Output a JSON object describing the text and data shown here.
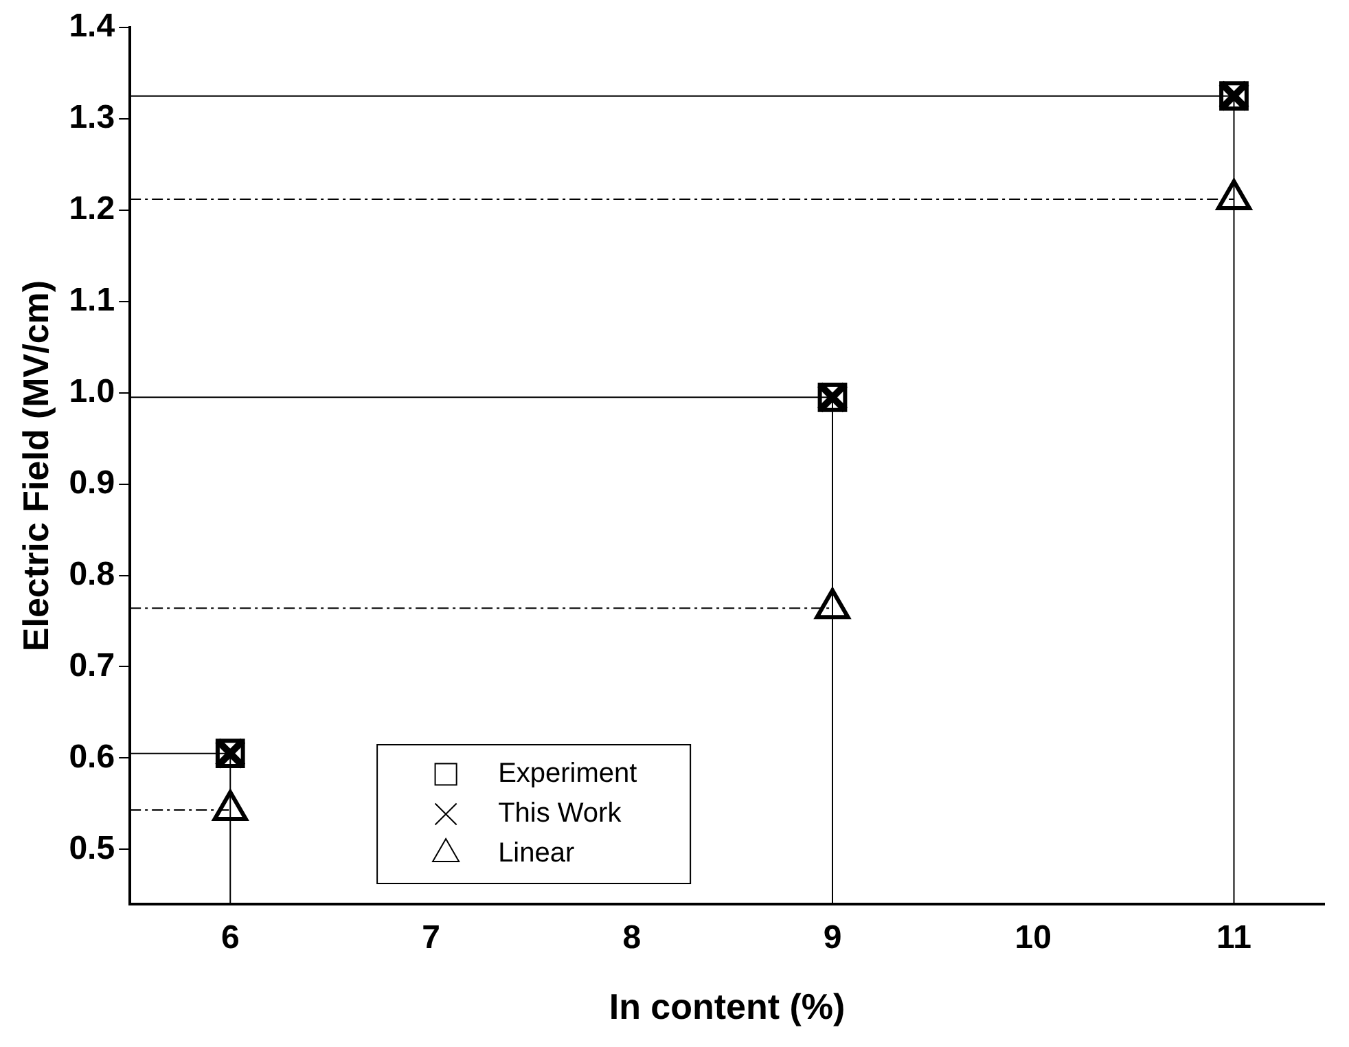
{
  "chart_data": {
    "type": "scatter",
    "xlabel": "In content (%)",
    "ylabel": "Electric Field (MV/cm)",
    "x": [
      6,
      9,
      11
    ],
    "series": [
      {
        "name": "Experiment",
        "color": "#000000",
        "marker": "square",
        "values": [
          0.605,
          0.995,
          1.325
        ]
      },
      {
        "name": "This Work",
        "color": "#000000",
        "marker": "cross",
        "values": [
          0.605,
          0.995,
          1.325
        ]
      },
      {
        "name": "Linear",
        "color": "#000000",
        "marker": "triangle",
        "values": [
          0.543,
          0.764,
          1.212
        ]
      },
      {
        "type": "line",
        "color": "#000000",
        "marker": "none",
        "line_style": "solid",
        "x": [
          5.5,
          6
        ],
        "values": [
          0.605,
          0.605
        ]
      },
      {
        "type": "line",
        "color": "#000000",
        "marker": "none",
        "line_style": "solid",
        "x": [
          5.5,
          9
        ],
        "values": [
          0.995,
          0.995
        ]
      },
      {
        "type": "line",
        "color": "#000000",
        "marker": "none",
        "line_style": "solid",
        "x": [
          5.5,
          11
        ],
        "values": [
          1.325,
          1.325
        ]
      },
      {
        "type": "line",
        "color": "#000000",
        "marker": "none",
        "line_style": "dashed",
        "x": [
          5.5,
          6
        ],
        "values": [
          0.543,
          0.543
        ]
      },
      {
        "type": "line",
        "color": "#000000",
        "marker": "none",
        "line_style": "dashed",
        "x": [
          5.5,
          9
        ],
        "values": [
          0.764,
          0.764
        ]
      },
      {
        "type": "line",
        "color": "#000000",
        "marker": "none",
        "line_style": "dashed",
        "x": [
          5.5,
          11
        ],
        "values": [
          1.212,
          1.212
        ]
      },
      {
        "type": "line",
        "color": "#000000",
        "marker": "none",
        "line_style": "solid",
        "x": [
          6,
          6
        ],
        "values": [
          0.44,
          0.605
        ]
      },
      {
        "type": "line",
        "color": "#000000",
        "marker": "none",
        "line_style": "solid",
        "x": [
          9,
          9
        ],
        "values": [
          0.44,
          0.995
        ]
      },
      {
        "type": "line",
        "color": "#000000",
        "marker": "none",
        "line_style": "solid",
        "x": [
          11,
          11
        ],
        "values": [
          0.44,
          1.325
        ]
      }
    ],
    "xlim": [
      5.5,
      11.45
    ],
    "xticks": [
      6,
      7,
      8,
      9,
      10,
      11
    ],
    "ylim": [
      0.44,
      1.4
    ],
    "yticks": [
      0.5,
      0.6,
      0.7,
      0.8,
      0.9,
      {
        "value": 1.0,
        "label": "1.0"
      },
      1.1,
      1.2,
      1.3,
      1.4
    ],
    "grid": false,
    "legend": "bottom left"
  }
}
